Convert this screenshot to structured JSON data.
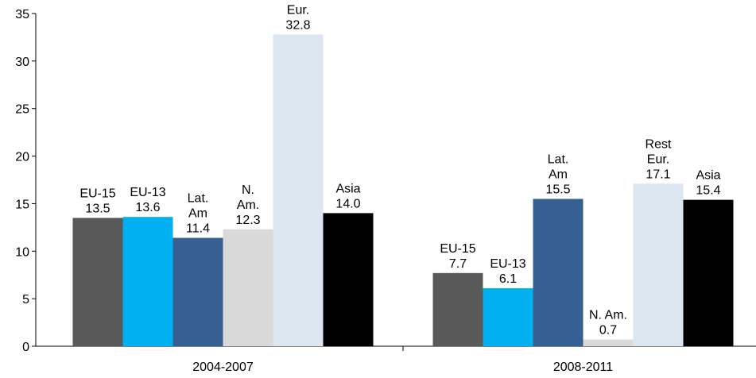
{
  "chart_data": {
    "type": "bar",
    "categories": [
      "2004-2007",
      "2008-2011"
    ],
    "series": [
      {
        "name": "EU-15",
        "color": "#595959",
        "values": [
          13.5,
          7.7
        ],
        "value_labels": [
          "13.5",
          "7.7"
        ]
      },
      {
        "name": "EU-13",
        "color": "#00b0f0",
        "values": [
          13.6,
          6.1
        ],
        "value_labels": [
          "13.6",
          "6.1"
        ]
      },
      {
        "name": "Lat. Am",
        "color": "#366092",
        "values": [
          11.4,
          15.5
        ],
        "value_labels": [
          "11.4",
          "15.5"
        ]
      },
      {
        "name": "N. Am.",
        "color": "#d9d9d9",
        "values": [
          12.3,
          0.7
        ],
        "value_labels": [
          "12.3",
          "0.7"
        ]
      },
      {
        "name": "Rest Eur.",
        "color": "#dce6f1",
        "values": [
          32.8,
          17.1
        ],
        "value_labels": [
          "32.8",
          "17.1"
        ]
      },
      {
        "name": "Asia",
        "color": "#000000",
        "values": [
          14,
          15.4
        ],
        "value_labels": [
          "14.0",
          "15.4"
        ]
      }
    ],
    "ylim": [
      0,
      35
    ],
    "yticks": [
      0,
      5,
      10,
      15,
      20,
      25,
      30,
      35
    ],
    "grid": false
  }
}
